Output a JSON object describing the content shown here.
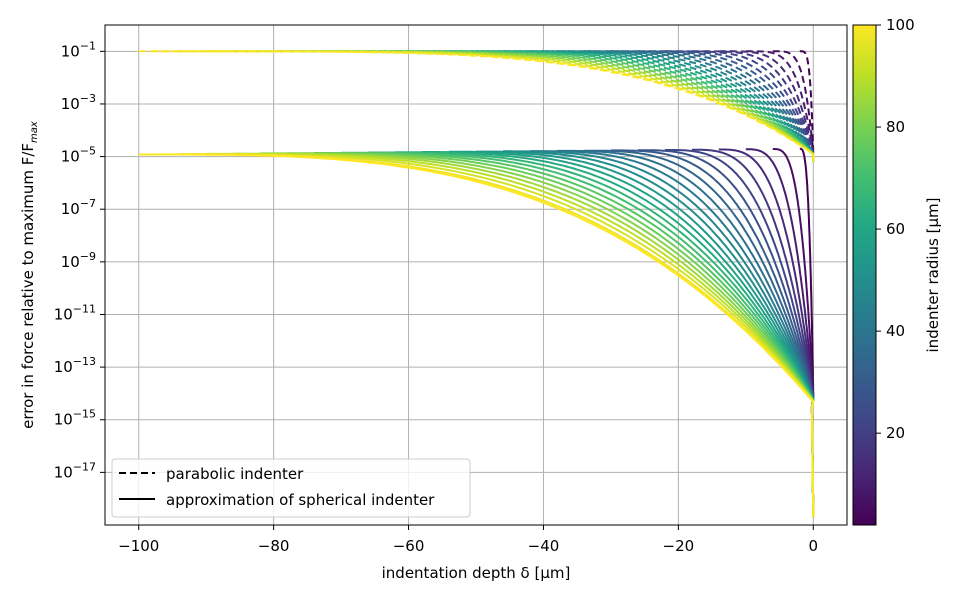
{
  "chart_data": {
    "type": "line",
    "title": "",
    "xlabel": "indentation depth δ [µm]",
    "ylabel": "error in force relative to maximum F/F",
    "ylabel_sub": "max",
    "xlim": [
      -105,
      5
    ],
    "ylim_log10": [
      -19,
      0
    ],
    "yscale": "log",
    "grid": true,
    "x_ticks": [
      -100,
      -80,
      -60,
      -40,
      -20,
      0
    ],
    "x_tick_labels": [
      "−100",
      "−80",
      "−60",
      "−40",
      "−20",
      "0"
    ],
    "y_tick_exponents": [
      -1,
      -3,
      -5,
      -7,
      -9,
      -11,
      -13,
      -15,
      -17
    ],
    "y_tick_base": "10",
    "y_tick_exponent_labels": [
      "−1",
      "−3",
      "−5",
      "−7",
      "−9",
      "−11",
      "−13",
      "−15",
      "−17"
    ],
    "legend": {
      "placement": "lower-left",
      "entries": [
        {
          "label": "parabolic indenter",
          "style": "dashed",
          "color": "#000000"
        },
        {
          "label": "approximation of spherical indenter",
          "style": "solid",
          "color": "#000000"
        }
      ]
    },
    "colorbar": {
      "label": "indenter radius [µm]",
      "colormap": "viridis",
      "range": [
        2,
        100
      ],
      "ticks": [
        20,
        40,
        60,
        80,
        100
      ],
      "tick_labels": [
        "20",
        "40",
        "60",
        "80",
        "100"
      ]
    },
    "series_groups": [
      {
        "name": "parabolic indenter",
        "style": "dashed",
        "description_values": {
          "radii_um": [
            2,
            6,
            10,
            14,
            18,
            22,
            26,
            30,
            34,
            38,
            42,
            46,
            50,
            54,
            58,
            62,
            66,
            70,
            74,
            78,
            82,
            86,
            90,
            94,
            98,
            100
          ],
          "y_at_start": 0.1,
          "y_near_zero_depth": 1e-05
        }
      },
      {
        "name": "approximation of spherical indenter",
        "style": "solid",
        "description_values": {
          "radii_um": [
            2,
            6,
            10,
            14,
            18,
            22,
            26,
            30,
            34,
            38,
            42,
            46,
            50,
            54,
            58,
            62,
            66,
            70,
            74,
            78,
            82,
            86,
            90,
            94,
            98,
            100
          ],
          "y_at_start": 2e-05,
          "y_near_zero_depth": 1e-14
        }
      }
    ]
  },
  "palette": {
    "grid": "#b0b0b0",
    "viridis": [
      "#440154",
      "#482475",
      "#414487",
      "#355f8d",
      "#2a788e",
      "#21918c",
      "#22a884",
      "#44bf70",
      "#7ad151",
      "#bddf26",
      "#fde725"
    ]
  }
}
